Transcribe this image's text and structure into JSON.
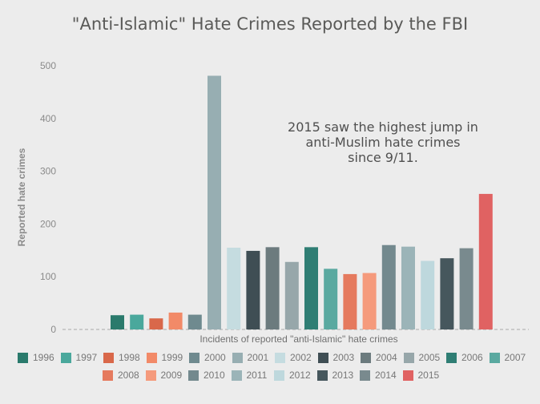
{
  "chart_data": {
    "type": "bar",
    "title": "\"Anti-Islamic\" Hate Crimes Reported by the FBI",
    "xlabel": "Incidents of reported \"anti-Islamic\" hate crimes",
    "ylabel": "Reported hate crimes",
    "ylim": [
      0,
      500
    ],
    "yticks": [
      0,
      100,
      200,
      300,
      400,
      500
    ],
    "grid": false,
    "legend": "bottom",
    "annotation": {
      "lines": [
        "2015 saw the highest jump in",
        "anti-Muslim hate crimes",
        "since 9/11."
      ]
    },
    "categories": [
      "1996",
      "1997",
      "1998",
      "1999",
      "2000",
      "2001",
      "2002",
      "2003",
      "2004",
      "2005",
      "2006",
      "2007",
      "2008",
      "2009",
      "2010",
      "2011",
      "2012",
      "2013",
      "2014",
      "2015"
    ],
    "values": [
      27,
      28,
      21,
      32,
      28,
      481,
      155,
      149,
      156,
      128,
      156,
      115,
      105,
      107,
      160,
      157,
      130,
      135,
      154,
      257
    ],
    "colors": [
      "#2a7a6c",
      "#4aa89c",
      "#d9684a",
      "#f28a68",
      "#6f8a8f",
      "#97aeb2",
      "#c5dce0",
      "#3f4e54",
      "#6c7b7e",
      "#97a7aa",
      "#2f7e74",
      "#5aa9a0",
      "#e57a5e",
      "#f59a7c",
      "#73898e",
      "#9bb4b8",
      "#bed8dd",
      "#46575d",
      "#798a8e",
      "#e06262"
    ]
  }
}
